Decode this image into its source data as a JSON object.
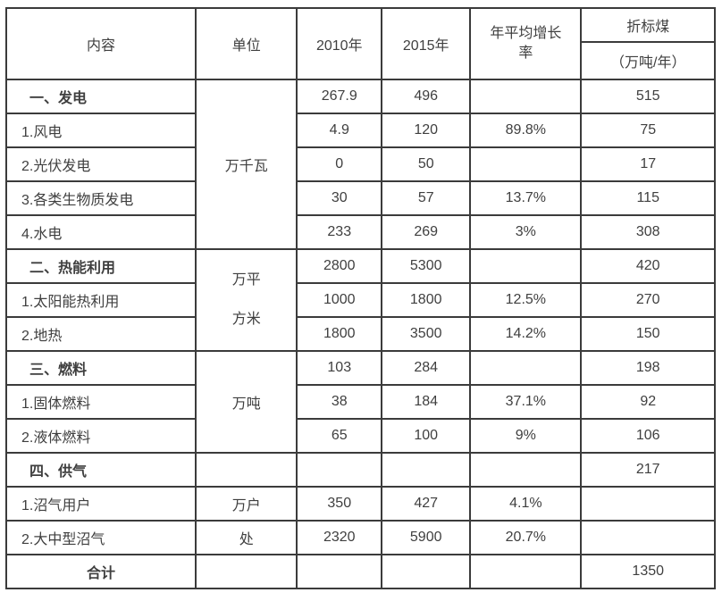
{
  "page": {
    "background_color": "#ffffff",
    "border_color": "#3b3b3b",
    "text_color": "#3f3f3f"
  },
  "table": {
    "header": {
      "content": "内容",
      "unit": "单位",
      "y2010": "2010年",
      "y2015": "2015年",
      "growth_line1": "年平均增长",
      "growth_line2": "率",
      "coal_title": "折标煤",
      "coal_unit": "（万吨/年）"
    },
    "span_units": {
      "power": "万千瓦",
      "thermal_line1": "万平",
      "thermal_line2": "方米",
      "fuel": "万吨"
    },
    "rows": [
      {
        "label": "一、发电",
        "v2010": "267.9",
        "v2015": "496",
        "growth": "",
        "coal": "515"
      },
      {
        "label": "1.风电",
        "v2010": "4.9",
        "v2015": "120",
        "growth": "89.8%",
        "coal": "75"
      },
      {
        "label": "2.光伏发电",
        "v2010": "0",
        "v2015": "50",
        "growth": "",
        "coal": "17"
      },
      {
        "label": "3.各类生物质发电",
        "v2010": "30",
        "v2015": "57",
        "growth": "13.7%",
        "coal": "115"
      },
      {
        "label": "4.水电",
        "v2010": "233",
        "v2015": "269",
        "growth": "3%",
        "coal": "308"
      },
      {
        "label": "二、热能利用",
        "v2010": "2800",
        "v2015": "5300",
        "growth": "",
        "coal": "420"
      },
      {
        "label": "1.太阳能热利用",
        "v2010": "1000",
        "v2015": "1800",
        "growth": "12.5%",
        "coal": "270"
      },
      {
        "label": "2.地热",
        "v2010": "1800",
        "v2015": "3500",
        "growth": "14.2%",
        "coal": "150"
      },
      {
        "label": "三、燃料",
        "v2010": "103",
        "v2015": "284",
        "growth": "",
        "coal": "198"
      },
      {
        "label": "1.固体燃料",
        "v2010": "38",
        "v2015": "184",
        "growth": "37.1%",
        "coal": "92"
      },
      {
        "label": "2.液体燃料",
        "v2010": "65",
        "v2015": "100",
        "growth": "9%",
        "coal": "106"
      },
      {
        "label": "四、供气",
        "unit": "",
        "v2010": "",
        "v2015": "",
        "growth": "",
        "coal": "217"
      },
      {
        "label": "1.沼气用户",
        "unit": "万户",
        "v2010": "350",
        "v2015": "427",
        "growth": "4.1%",
        "coal": ""
      },
      {
        "label": "2.大中型沼气",
        "unit": "处",
        "v2010": "2320",
        "v2015": "5900",
        "growth": "20.7%",
        "coal": ""
      },
      {
        "label": "合计",
        "unit": "",
        "v2010": "",
        "v2015": "",
        "growth": "",
        "coal": "1350"
      }
    ]
  }
}
